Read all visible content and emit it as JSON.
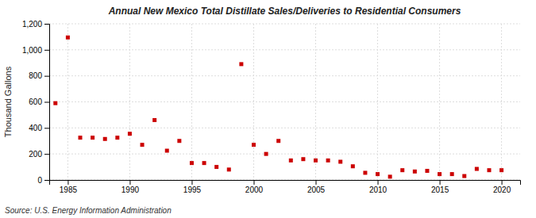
{
  "chart_data": {
    "type": "scatter",
    "title": "Annual New Mexico Total Distillate Sales/Deliveries to Residential Consumers",
    "ylabel": "Thousand Gallons",
    "source": "Source: U.S. Energy Information Administration",
    "x": [
      1984,
      1985,
      1986,
      1987,
      1988,
      1989,
      1990,
      1991,
      1992,
      1993,
      1994,
      1995,
      1996,
      1997,
      1998,
      1999,
      2000,
      2001,
      2002,
      2003,
      2004,
      2005,
      2006,
      2007,
      2008,
      2009,
      2010,
      2011,
      2012,
      2013,
      2014,
      2015,
      2016,
      2017,
      2018,
      2019,
      2020
    ],
    "values": [
      590,
      1095,
      325,
      325,
      315,
      325,
      355,
      270,
      460,
      225,
      300,
      130,
      130,
      100,
      80,
      890,
      270,
      200,
      300,
      150,
      160,
      150,
      150,
      140,
      105,
      55,
      45,
      25,
      75,
      65,
      70,
      45,
      45,
      30,
      85,
      75,
      75
    ],
    "color": "#cc0000",
    "marker": "square",
    "grid": true,
    "xlim": [
      1983.5,
      2021.5
    ],
    "xticks": [
      1985,
      1990,
      1995,
      2000,
      2005,
      2010,
      2015,
      2020
    ],
    "ylim": [
      0,
      1200
    ],
    "yticks": [
      0,
      200,
      400,
      600,
      800,
      {
        "value": 1000,
        "label": "1,000"
      },
      {
        "value": 1200,
        "label": "1,200"
      }
    ]
  }
}
